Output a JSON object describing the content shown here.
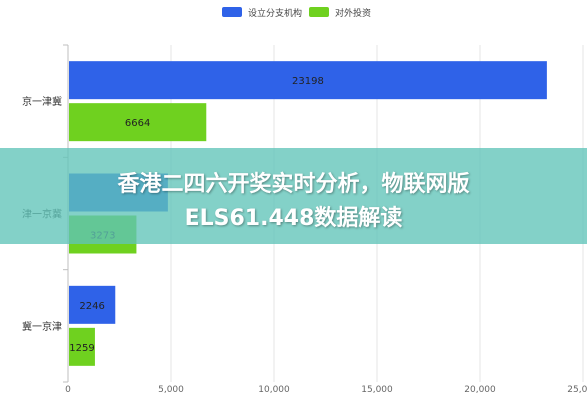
{
  "chart_data": {
    "type": "bar",
    "orientation": "horizontal",
    "categories": [
      "京一津冀",
      "津一京冀",
      "冀一京津"
    ],
    "series": [
      {
        "name": "设立分支机构",
        "color": "#2f62e8",
        "values": [
          23198,
          4800,
          2246
        ]
      },
      {
        "name": "对外投资",
        "color": "#6fd11f",
        "values": [
          6664,
          3273,
          1259
        ]
      }
    ],
    "value_labels": [
      [
        "23198",
        "6664"
      ],
      [
        "",
        "3273"
      ],
      [
        "2246",
        "1259"
      ]
    ],
    "xticks": [
      "0",
      "5,000",
      "10,000",
      "15,000",
      "20,000",
      "25,000"
    ],
    "xlim": [
      0,
      25000
    ],
    "legend_position": "top-center",
    "grid": true
  },
  "overlay": {
    "line1": "香港二四六开奖实时分析，物联网版",
    "line2": "ELS61.448数据解读"
  }
}
